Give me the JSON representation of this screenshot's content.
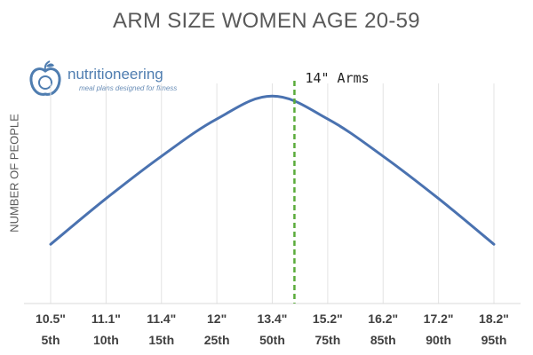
{
  "logo": {
    "name": "nutritioneering",
    "tagline": "meal plans designed for fitness"
  },
  "chart_data": {
    "type": "line",
    "title": "ARM SIZE WOMEN AGE 20-59",
    "xlabel": "",
    "ylabel": "NUMBER OF PEOPLE",
    "categories": [
      "10.5\"",
      "11.1\"",
      "11.4\"",
      "12\"",
      "13.4\"",
      "15.2\"",
      "16.2\"",
      "17.2\"",
      "18.2\""
    ],
    "percentiles": [
      "5th",
      "10th",
      "15th",
      "25th",
      "50th",
      "75th",
      "85th",
      "90th",
      "95th"
    ],
    "series": [
      {
        "values": [
          5,
          32,
          57,
          79,
          92.5,
          79,
          57,
          32,
          5
        ],
        "color": "#4a72b0"
      }
    ],
    "ylim": [
      -30,
      100
    ],
    "grid": "vertical",
    "marker": {
      "label": "14\" Arms",
      "position": 4.4,
      "color": "#5aab3a",
      "style": "dashed"
    }
  }
}
